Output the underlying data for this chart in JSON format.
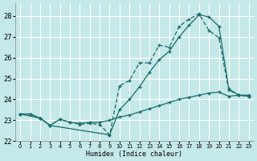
{
  "xlabel": "Humidex (Indice chaleur)",
  "bg_color": "#c5e8e8",
  "grid_color": "#ffffff",
  "line_color": "#1a6b6b",
  "x_ticks": [
    0,
    1,
    2,
    3,
    4,
    5,
    6,
    7,
    8,
    9,
    10,
    11,
    12,
    13,
    14,
    15,
    16,
    17,
    18,
    19,
    20,
    21,
    22,
    23
  ],
  "xlim": [
    -0.5,
    23.5
  ],
  "ylim": [
    22.0,
    28.6
  ],
  "y_ticks": [
    22,
    23,
    24,
    25,
    26,
    27,
    28
  ],
  "line1_x": [
    0,
    1,
    2,
    3,
    4,
    5,
    6,
    7,
    8,
    9,
    10,
    11,
    12,
    13,
    14,
    15,
    16,
    17,
    18,
    19,
    20,
    21,
    22,
    23
  ],
  "line1_y": [
    23.3,
    23.3,
    23.1,
    22.75,
    23.05,
    22.9,
    22.8,
    22.85,
    22.8,
    22.3,
    24.65,
    24.9,
    25.75,
    25.75,
    26.6,
    26.5,
    27.5,
    27.85,
    28.1,
    27.3,
    26.95,
    24.45,
    24.2,
    24.15
  ],
  "line2_x": [
    0,
    2,
    3,
    9,
    10,
    11,
    12,
    13,
    14,
    15,
    16,
    17,
    18,
    19,
    20,
    21,
    22,
    23
  ],
  "line2_y": [
    23.3,
    23.1,
    22.75,
    22.3,
    23.5,
    24.0,
    24.6,
    25.3,
    25.9,
    26.3,
    27.0,
    27.55,
    28.05,
    27.95,
    27.5,
    24.5,
    24.2,
    24.15
  ],
  "line3_x": [
    0,
    1,
    2,
    3,
    4,
    5,
    6,
    7,
    8,
    9,
    10,
    11,
    12,
    13,
    14,
    15,
    16,
    17,
    18,
    19,
    20,
    21,
    22,
    23
  ],
  "line3_y": [
    23.3,
    23.3,
    23.1,
    22.75,
    23.05,
    22.9,
    22.85,
    22.9,
    22.9,
    23.0,
    23.15,
    23.25,
    23.4,
    23.55,
    23.7,
    23.85,
    24.0,
    24.1,
    24.2,
    24.3,
    24.35,
    24.15,
    24.2,
    24.2
  ]
}
